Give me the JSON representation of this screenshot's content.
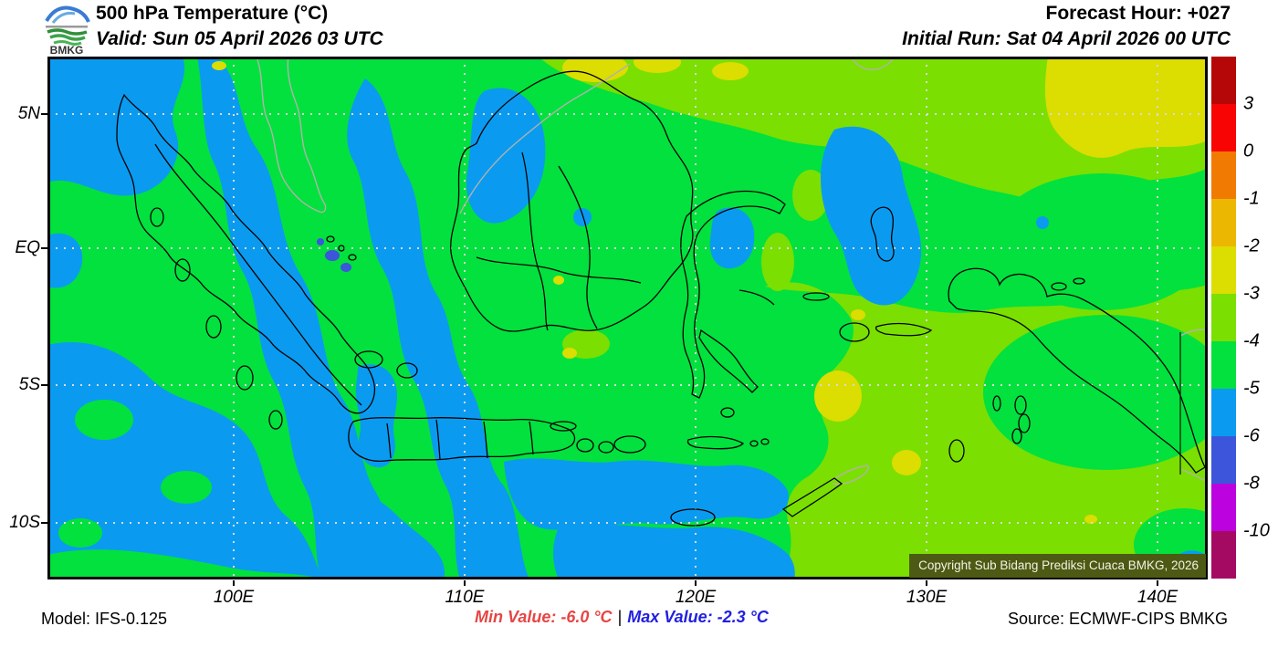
{
  "header": {
    "logo": "BMKG",
    "title": "500 hPa Temperature (°C)",
    "valid": "Valid: Sun 05 April 2026 03 UTC",
    "forecast_hour": "Forecast Hour: +027",
    "initial_run": "Initial Run: Sat 04 April 2026 00 UTC"
  },
  "map": {
    "copyright": "Copyright Sub Bidang Prediksi Cuaca BMKG, 2026",
    "lat_labels": [
      "5N",
      "EQ",
      "5S",
      "10S"
    ],
    "lon_labels": [
      "100E",
      "110E",
      "120E",
      "130E",
      "140E"
    ],
    "palette": {
      "green": "#02e13e",
      "chartreuse": "#7bdf01",
      "yellow": "#dcdd00",
      "blue": "#0a9bf1",
      "dark_blue": "#3c55da",
      "coast_indonesia": "#000000",
      "coast_foreign": "#b2b2aa",
      "grid": "#d9d9d9",
      "border": "#000000"
    }
  },
  "colorbar": {
    "labels": [
      "3",
      "0",
      "-1",
      "-2",
      "-3",
      "-4",
      "-5",
      "-6",
      "-8",
      "-10"
    ],
    "colors": [
      "#b60708",
      "#f90405",
      "#f17a02",
      "#ecb701",
      "#dcdd00",
      "#7bdf01",
      "#02e13e",
      "#0a9bf1",
      "#3c55da",
      "#bc02de",
      "#a50a62"
    ]
  },
  "footer": {
    "model": "Model: IFS-0.125",
    "min_value": "Min Value: -6.0 °C",
    "separator": "|",
    "max_value": "Max Value: -2.3 °C",
    "source": "Source: ECMWF-CIPS BMKG",
    "min_color": "#e64545",
    "max_color": "#2020e0"
  }
}
